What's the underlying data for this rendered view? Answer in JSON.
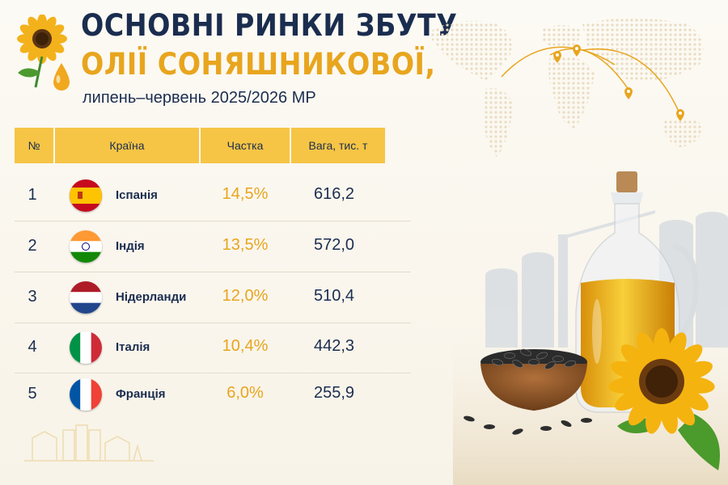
{
  "title": {
    "line1": "ОСНОВНІ РИНКИ ЗБУТУ",
    "line2": "ОЛІЇ СОНЯШНИКОВОЇ,",
    "subtitle": "липень–червень 2025/2026 МР"
  },
  "table": {
    "headers": [
      "№",
      "Країна",
      "Частка",
      "Вага, тис. т"
    ],
    "rows": [
      {
        "num": "1",
        "country": "Іспанія",
        "share": "14,5%",
        "weight": "616,2",
        "flag": "spain-flag-icon"
      },
      {
        "num": "2",
        "country": "Індія",
        "share": "13,5%",
        "weight": "572,0",
        "flag": "india-flag-icon"
      },
      {
        "num": "3",
        "country": "Нідерланди",
        "share": "12,0%",
        "weight": "510,4",
        "flag": "netherlands-flag-icon"
      },
      {
        "num": "4",
        "country": "Італія",
        "share": "10,4%",
        "weight": "442,3",
        "flag": "italy-flag-icon"
      },
      {
        "num": "5",
        "country": "Франція",
        "share": "6,0%",
        "weight": "255,9",
        "flag": "france-flag-icon"
      }
    ]
  },
  "colors": {
    "navy": "#1b2d4f",
    "gold": "#e8a51e",
    "header_bg": "#f6c545",
    "background": "#fbf8f1"
  },
  "icons": [
    "sunflower-logo-icon",
    "oil-drop-icon",
    "world-map-icon",
    "location-pin-icon",
    "oil-bottle-icon",
    "sunflower-icon",
    "seeds-bowl-icon",
    "grain-elevator-icon"
  ]
}
